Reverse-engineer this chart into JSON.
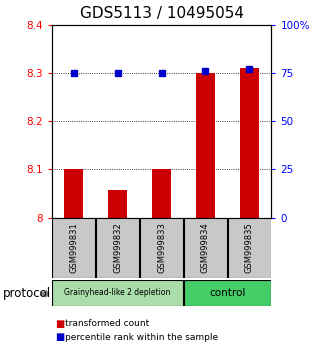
{
  "title": "GDS5113 / 10495054",
  "samples": [
    "GSM999831",
    "GSM999832",
    "GSM999833",
    "GSM999834",
    "GSM999835"
  ],
  "red_values": [
    8.1,
    8.057,
    8.1,
    8.3,
    8.31
  ],
  "blue_values": [
    75,
    75,
    75,
    76,
    77
  ],
  "ylim_left": [
    8.0,
    8.4
  ],
  "ylim_right": [
    0,
    100
  ],
  "yticks_left": [
    8.0,
    8.1,
    8.2,
    8.3,
    8.4
  ],
  "ytick_labels_left": [
    "8",
    "8.1",
    "8.2",
    "8.3",
    "8.4"
  ],
  "yticks_right": [
    0,
    25,
    50,
    75,
    100
  ],
  "ytick_labels_right": [
    "0",
    "25",
    "50",
    "75",
    "100%"
  ],
  "group1_label": "Grainyhead-like 2 depletion",
  "group2_label": "control",
  "group1_color": "#aaddaa",
  "group2_color": "#44cc66",
  "sample_box_color": "#c8c8c8",
  "bar_color": "#cc0000",
  "dot_color": "#0000cc",
  "protocol_label": "protocol",
  "legend_red_label": "transformed count",
  "legend_blue_label": "percentile rank within the sample",
  "title_fontsize": 11,
  "tick_fontsize": 7.5
}
